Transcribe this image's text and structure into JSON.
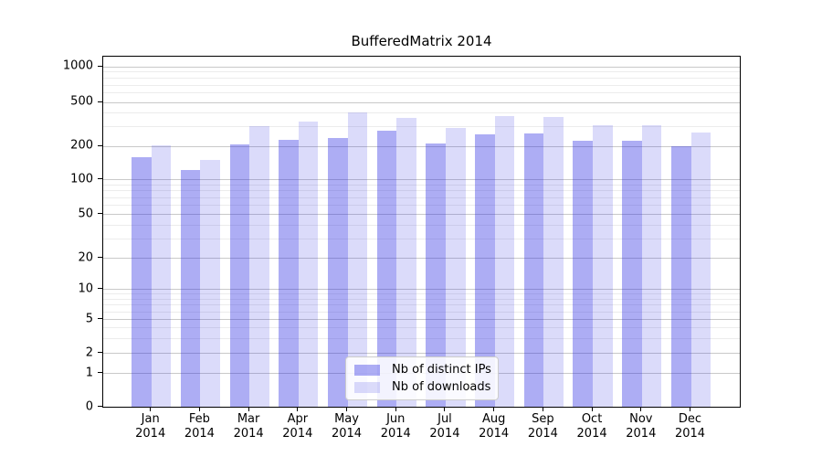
{
  "title": "BufferedMatrix 2014",
  "chart_data": {
    "type": "bar",
    "title": "BufferedMatrix 2014",
    "categories": [
      "Jan",
      "Feb",
      "Mar",
      "Apr",
      "May",
      "Jun",
      "Jul",
      "Aug",
      "Sep",
      "Oct",
      "Nov",
      "Dec"
    ],
    "year": "2014",
    "series": [
      {
        "name": "Nb of distinct IPs",
        "color": "rgba(40,40,225,0.38)",
        "values": [
          157,
          120,
          206,
          228,
          233,
          276,
          208,
          252,
          258,
          221,
          222,
          197
        ]
      },
      {
        "name": "Nb of downloads",
        "color": "rgba(40,40,225,0.17)",
        "values": [
          203,
          148,
          300,
          333,
          403,
          360,
          290,
          373,
          366,
          305,
          310,
          266
        ]
      }
    ],
    "yscale": "log (linear below 1)",
    "yticks": [
      0,
      1,
      2,
      5,
      10,
      20,
      50,
      100,
      200,
      500,
      1000
    ],
    "yticks_minor": [
      3,
      4,
      6,
      7,
      8,
      9,
      30,
      40,
      60,
      70,
      80,
      90,
      300,
      400,
      600,
      700,
      800,
      900
    ],
    "ylim": [
      0,
      1000
    ],
    "xlabel": "",
    "ylabel": "",
    "grid": true,
    "legend_position": "lower center",
    "colors": {
      "major_grid": "#c9c9c9",
      "minor_grid": "#ececec",
      "axis": "#000000",
      "background": "#ffffff"
    }
  }
}
